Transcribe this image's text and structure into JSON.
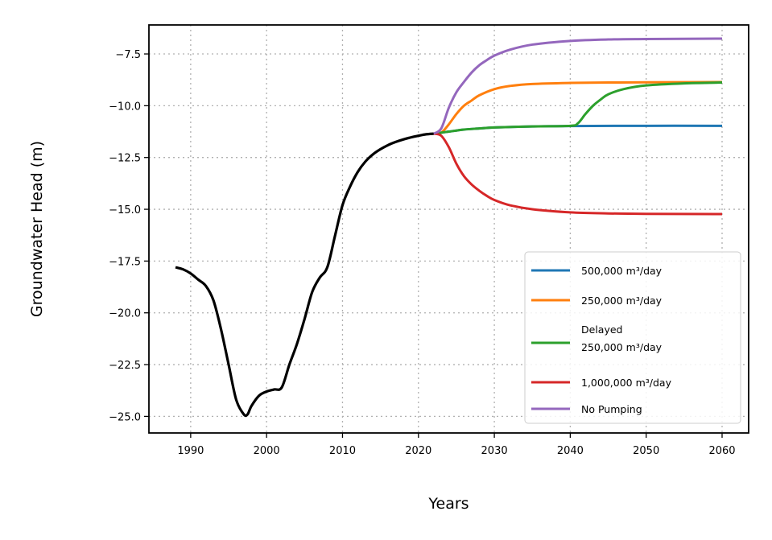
{
  "chart_data": {
    "type": "line",
    "xlabel": "Years",
    "ylabel": "Groundwater Head (m)",
    "xlim": [
      1984.5,
      2063.5
    ],
    "ylim": [
      -25.8,
      -6.1
    ],
    "x_ticks": [
      1990,
      2000,
      2010,
      2020,
      2030,
      2040,
      2050,
      2060
    ],
    "x_tick_labels": [
      "1990",
      "2000",
      "2010",
      "2020",
      "2030",
      "2040",
      "2050",
      "2060"
    ],
    "y_ticks": [
      -7.5,
      -10.0,
      -12.5,
      -15.0,
      -17.5,
      -20.0,
      -22.5,
      -25.0
    ],
    "y_tick_labels": [
      "−7.5",
      "−10.0",
      "−12.5",
      "−15.0",
      "−17.5",
      "−20.0",
      "−22.5",
      "−25.0"
    ],
    "grid": true,
    "legend_position": "lower-right",
    "historical": {
      "color": "#000000",
      "x": [
        1988,
        1989,
        1990,
        1991,
        1992,
        1993,
        1994,
        1995,
        1996,
        1997,
        1997.5,
        1998,
        1999,
        2000,
        2001,
        2002,
        2003,
        2004,
        2005,
        2006,
        2007,
        2008,
        2009,
        2010,
        2011,
        2012,
        2013,
        2014,
        2015,
        2016,
        2017,
        2018,
        2019,
        2020,
        2021,
        2022
      ],
      "values": [
        -17.8,
        -17.9,
        -18.1,
        -18.4,
        -18.7,
        -19.4,
        -20.8,
        -22.5,
        -24.2,
        -24.9,
        -24.9,
        -24.5,
        -24.0,
        -23.8,
        -23.7,
        -23.6,
        -22.5,
        -21.5,
        -20.3,
        -19.0,
        -18.3,
        -17.8,
        -16.3,
        -14.8,
        -13.9,
        -13.2,
        -12.7,
        -12.35,
        -12.1,
        -11.9,
        -11.75,
        -11.63,
        -11.53,
        -11.45,
        -11.38,
        -11.35
      ]
    },
    "series": [
      {
        "name": "500,000 m³/day",
        "color": "#1f77b4",
        "x": [
          2022,
          2023,
          2024,
          2026,
          2028,
          2030,
          2035,
          2040,
          2050,
          2060
        ],
        "values": [
          -11.35,
          -11.3,
          -11.25,
          -11.15,
          -11.1,
          -11.05,
          -11.0,
          -10.98,
          -10.97,
          -10.97
        ]
      },
      {
        "name": "250,000 m³/day",
        "color": "#ff7f0e",
        "x": [
          2022,
          2023,
          2024,
          2025,
          2026,
          2027,
          2028,
          2030,
          2032,
          2035,
          2040,
          2045,
          2050,
          2060
        ],
        "values": [
          -11.35,
          -11.3,
          -10.9,
          -10.4,
          -10.0,
          -9.75,
          -9.5,
          -9.2,
          -9.05,
          -8.95,
          -8.9,
          -8.88,
          -8.87,
          -8.86
        ]
      },
      {
        "name": "Delayed\n250,000 m³/day",
        "color": "#2ca02c",
        "x": [
          2022,
          2023,
          2024,
          2026,
          2028,
          2030,
          2035,
          2040,
          2041,
          2042,
          2043,
          2044,
          2045,
          2047,
          2050,
          2055,
          2060
        ],
        "values": [
          -11.35,
          -11.3,
          -11.25,
          -11.15,
          -11.1,
          -11.05,
          -11.0,
          -10.97,
          -10.85,
          -10.4,
          -10.0,
          -9.7,
          -9.45,
          -9.2,
          -9.02,
          -8.92,
          -8.88
        ]
      },
      {
        "name": "1,000,000 m³/day",
        "color": "#d62728",
        "x": [
          2022,
          2023,
          2024,
          2025,
          2026,
          2027,
          2028,
          2029,
          2030,
          2032,
          2035,
          2040,
          2045,
          2050,
          2060
        ],
        "values": [
          -11.35,
          -11.45,
          -12.0,
          -12.8,
          -13.4,
          -13.8,
          -14.1,
          -14.35,
          -14.55,
          -14.8,
          -15.0,
          -15.15,
          -15.2,
          -15.22,
          -15.23
        ]
      },
      {
        "name": "No Pumping",
        "color": "#9467bd",
        "x": [
          2022,
          2023,
          2024,
          2025,
          2026,
          2027,
          2028,
          2029,
          2030,
          2032,
          2035,
          2040,
          2045,
          2050,
          2060
        ],
        "values": [
          -11.35,
          -11.1,
          -10.1,
          -9.35,
          -8.85,
          -8.4,
          -8.05,
          -7.8,
          -7.58,
          -7.3,
          -7.05,
          -6.87,
          -6.8,
          -6.78,
          -6.76
        ]
      }
    ]
  }
}
